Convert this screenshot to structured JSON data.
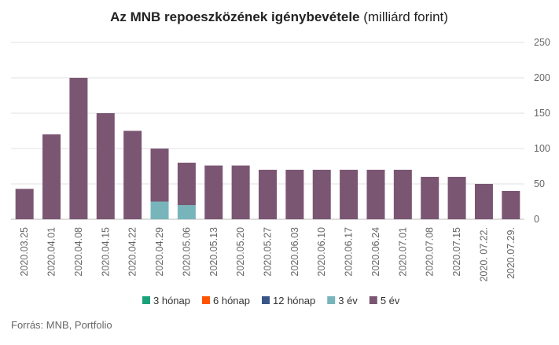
{
  "chart_data": {
    "type": "bar",
    "stacked": true,
    "title_bold": "Az MNB repoeszközének igénybevétele",
    "title_normal": " (milliárd forint)",
    "categories": [
      "2020.03.25",
      "2020.04.01",
      "2020.04.08",
      "2020.04.15",
      "2020.04.22",
      "2020.04.29",
      "2020.05.06",
      "2020.05.13",
      "2020.05.20",
      "2020.05.27",
      "2020.06.03",
      "2020.06.10",
      "2020.06.17",
      "2020.06.24",
      "2020.07.01",
      "2020.07.08",
      "2020.07.15",
      "2020. 07.22.",
      "2020.07.29."
    ],
    "series": [
      {
        "name": "3 hónap",
        "color": "#1aa37a",
        "values": [
          0,
          0,
          0,
          0,
          0,
          0,
          0,
          0,
          0,
          0,
          0,
          0,
          0,
          0,
          0,
          0,
          0,
          0,
          0
        ]
      },
      {
        "name": "6 hónap",
        "color": "#ff5500",
        "values": [
          0,
          0,
          0,
          0,
          0,
          0,
          0,
          0,
          0,
          0,
          0,
          0,
          0,
          0,
          0,
          0,
          0,
          0,
          0
        ]
      },
      {
        "name": "12 hónap",
        "color": "#3a5588",
        "values": [
          0,
          0,
          0,
          0,
          0,
          0,
          0,
          0,
          0,
          0,
          0,
          0,
          0,
          0,
          0,
          0,
          0,
          0,
          0
        ]
      },
      {
        "name": "3 év",
        "color": "#78b5bb",
        "values": [
          0,
          0,
          0,
          0,
          0,
          25,
          20,
          0,
          0,
          0,
          0,
          0,
          0,
          0,
          0,
          0,
          0,
          0,
          0
        ]
      },
      {
        "name": "5 év",
        "color": "#7b5673",
        "values": [
          43,
          120,
          200,
          150,
          125,
          75,
          60,
          76,
          76,
          70,
          70,
          70,
          70,
          70,
          70,
          60,
          60,
          50,
          40
        ]
      }
    ],
    "y_ticks": [
      "0",
      "50",
      "100",
      "150",
      "200",
      "250"
    ],
    "ylim": [
      0,
      250
    ],
    "grid": true,
    "y_axis_position": "right",
    "legend_position": "bottom"
  },
  "source": "Forrás: MNB, Portfolio"
}
